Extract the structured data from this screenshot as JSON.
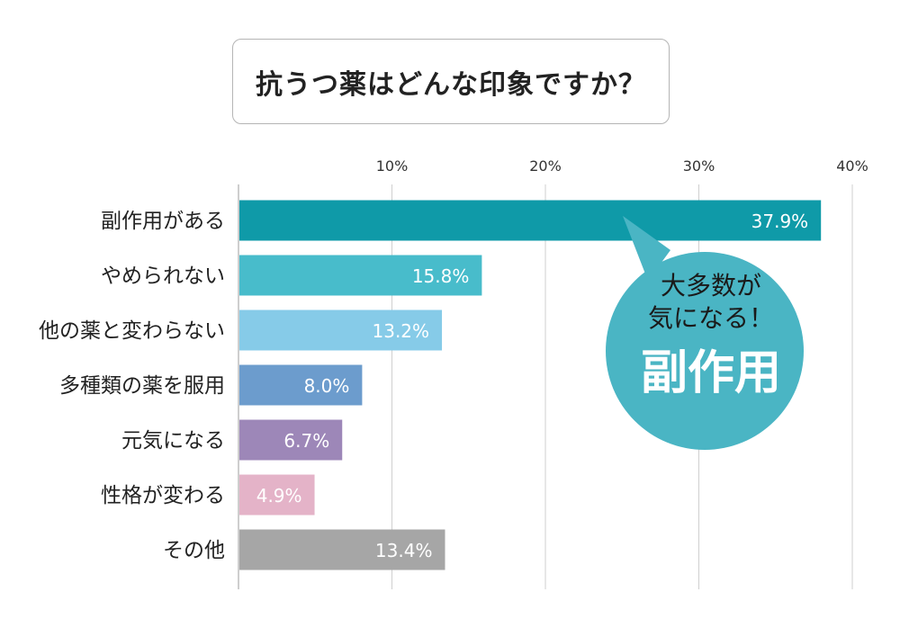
{
  "title": "抗うつ薬はどんな印象ですか？",
  "callout": {
    "line1": "大多数が",
    "line2": "気になる！",
    "line3": "副作用",
    "color": "#4ab5c4"
  },
  "chart_data": {
    "type": "bar",
    "orientation": "horizontal",
    "categories": [
      "副作用がある",
      "やめられない",
      "他の薬と変わらない",
      "多種類の薬を服用",
      "元気になる",
      "性格が変わる",
      "その他"
    ],
    "values": [
      37.9,
      15.8,
      13.2,
      8.0,
      6.7,
      4.9,
      13.4
    ],
    "value_labels": [
      "37.9%",
      "15.8%",
      "13.2%",
      "8.0%",
      "6.7%",
      "4.9%",
      "13.4%"
    ],
    "bar_colors": [
      "#0f9aa8",
      "#48bccb",
      "#86cbe8",
      "#6c9ccd",
      "#9d87b8",
      "#e4b3c8",
      "#a6a6a6"
    ],
    "xticks": [
      10,
      20,
      30,
      40
    ],
    "xtick_labels": [
      "10%",
      "20%",
      "30%",
      "40%"
    ],
    "xlim": [
      0,
      42
    ],
    "grid": true
  }
}
